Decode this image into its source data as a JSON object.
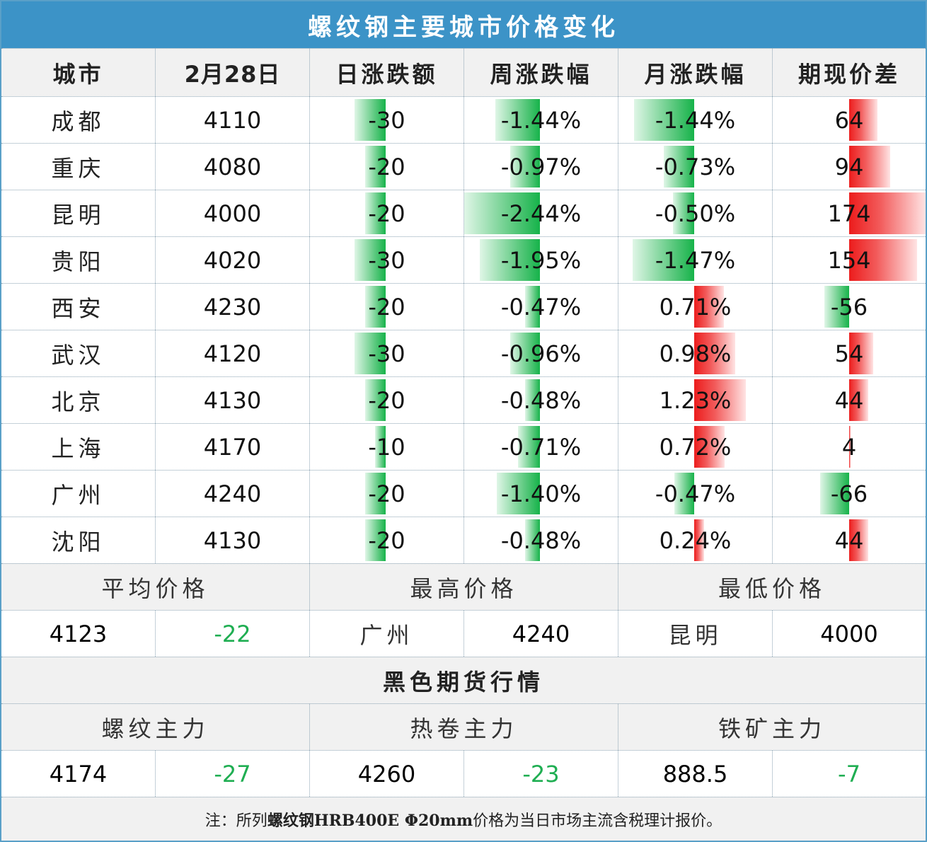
{
  "title": "螺纹钢主要城市价格变化",
  "headers": [
    "城市",
    "2月28日",
    "日涨跌额",
    "周涨跌幅",
    "月涨跌幅",
    "期现价差"
  ],
  "rows": [
    {
      "city": "成都",
      "price": "4110",
      "daily": "-30",
      "daily_v": -30,
      "week": "-1.44%",
      "week_v": -1.44,
      "month": "-1.44%",
      "month_v": -1.44,
      "spread": "64",
      "spread_v": 64
    },
    {
      "city": "重庆",
      "price": "4080",
      "daily": "-20",
      "daily_v": -20,
      "week": "-0.97%",
      "week_v": -0.97,
      "month": "-0.73%",
      "month_v": -0.73,
      "spread": "94",
      "spread_v": 94
    },
    {
      "city": "昆明",
      "price": "4000",
      "daily": "-20",
      "daily_v": -20,
      "week": "-2.44%",
      "week_v": -2.44,
      "month": "-0.50%",
      "month_v": -0.5,
      "spread": "174",
      "spread_v": 174
    },
    {
      "city": "贵阳",
      "price": "4020",
      "daily": "-30",
      "daily_v": -30,
      "week": "-1.95%",
      "week_v": -1.95,
      "month": "-1.47%",
      "month_v": -1.47,
      "spread": "154",
      "spread_v": 154
    },
    {
      "city": "西安",
      "price": "4230",
      "daily": "-20",
      "daily_v": -20,
      "week": "-0.47%",
      "week_v": -0.47,
      "month": "0.71%",
      "month_v": 0.71,
      "spread": "-56",
      "spread_v": -56
    },
    {
      "city": "武汉",
      "price": "4120",
      "daily": "-30",
      "daily_v": -30,
      "week": "-0.96%",
      "week_v": -0.96,
      "month": "0.98%",
      "month_v": 0.98,
      "spread": "54",
      "spread_v": 54
    },
    {
      "city": "北京",
      "price": "4130",
      "daily": "-20",
      "daily_v": -20,
      "week": "-0.48%",
      "week_v": -0.48,
      "month": "1.23%",
      "month_v": 1.23,
      "spread": "44",
      "spread_v": 44
    },
    {
      "city": "上海",
      "price": "4170",
      "daily": "-10",
      "daily_v": -10,
      "week": "-0.71%",
      "week_v": -0.71,
      "month": "0.72%",
      "month_v": 0.72,
      "spread": "4",
      "spread_v": 4
    },
    {
      "city": "广州",
      "price": "4240",
      "daily": "-20",
      "daily_v": -20,
      "week": "-1.40%",
      "week_v": -1.4,
      "month": "-0.47%",
      "month_v": -0.47,
      "spread": "-66",
      "spread_v": -66
    },
    {
      "city": "沈阳",
      "price": "4130",
      "daily": "-20",
      "daily_v": -20,
      "week": "-0.48%",
      "week_v": -0.48,
      "month": "0.24%",
      "month_v": 0.24,
      "spread": "44",
      "spread_v": 44
    }
  ],
  "summary": {
    "avg_label": "平均价格",
    "high_label": "最高价格",
    "low_label": "最低价格",
    "avg_price": "4123",
    "avg_change": "-22",
    "high_city": "广州",
    "high_price": "4240",
    "low_city": "昆明",
    "low_price": "4000"
  },
  "futures": {
    "section_title": "黑色期货行情",
    "rebar_label": "螺纹主力",
    "hrc_label": "热卷主力",
    "iron_label": "铁矿主力",
    "rebar_price": "4174",
    "rebar_change": "-27",
    "hrc_price": "4260",
    "hrc_change": "-23",
    "iron_price": "888.5",
    "iron_change": "-7"
  },
  "note": {
    "prefix": "注：所列",
    "bold": "螺纹钢HRB400E Φ20mm",
    "suffix": "价格为当日市场主流含税理计报价。"
  },
  "colors": {
    "title_bg": "#3c93c7",
    "negative": "#16b34a",
    "positive": "#ec1c1c",
    "green_text": "#1fae52"
  }
}
